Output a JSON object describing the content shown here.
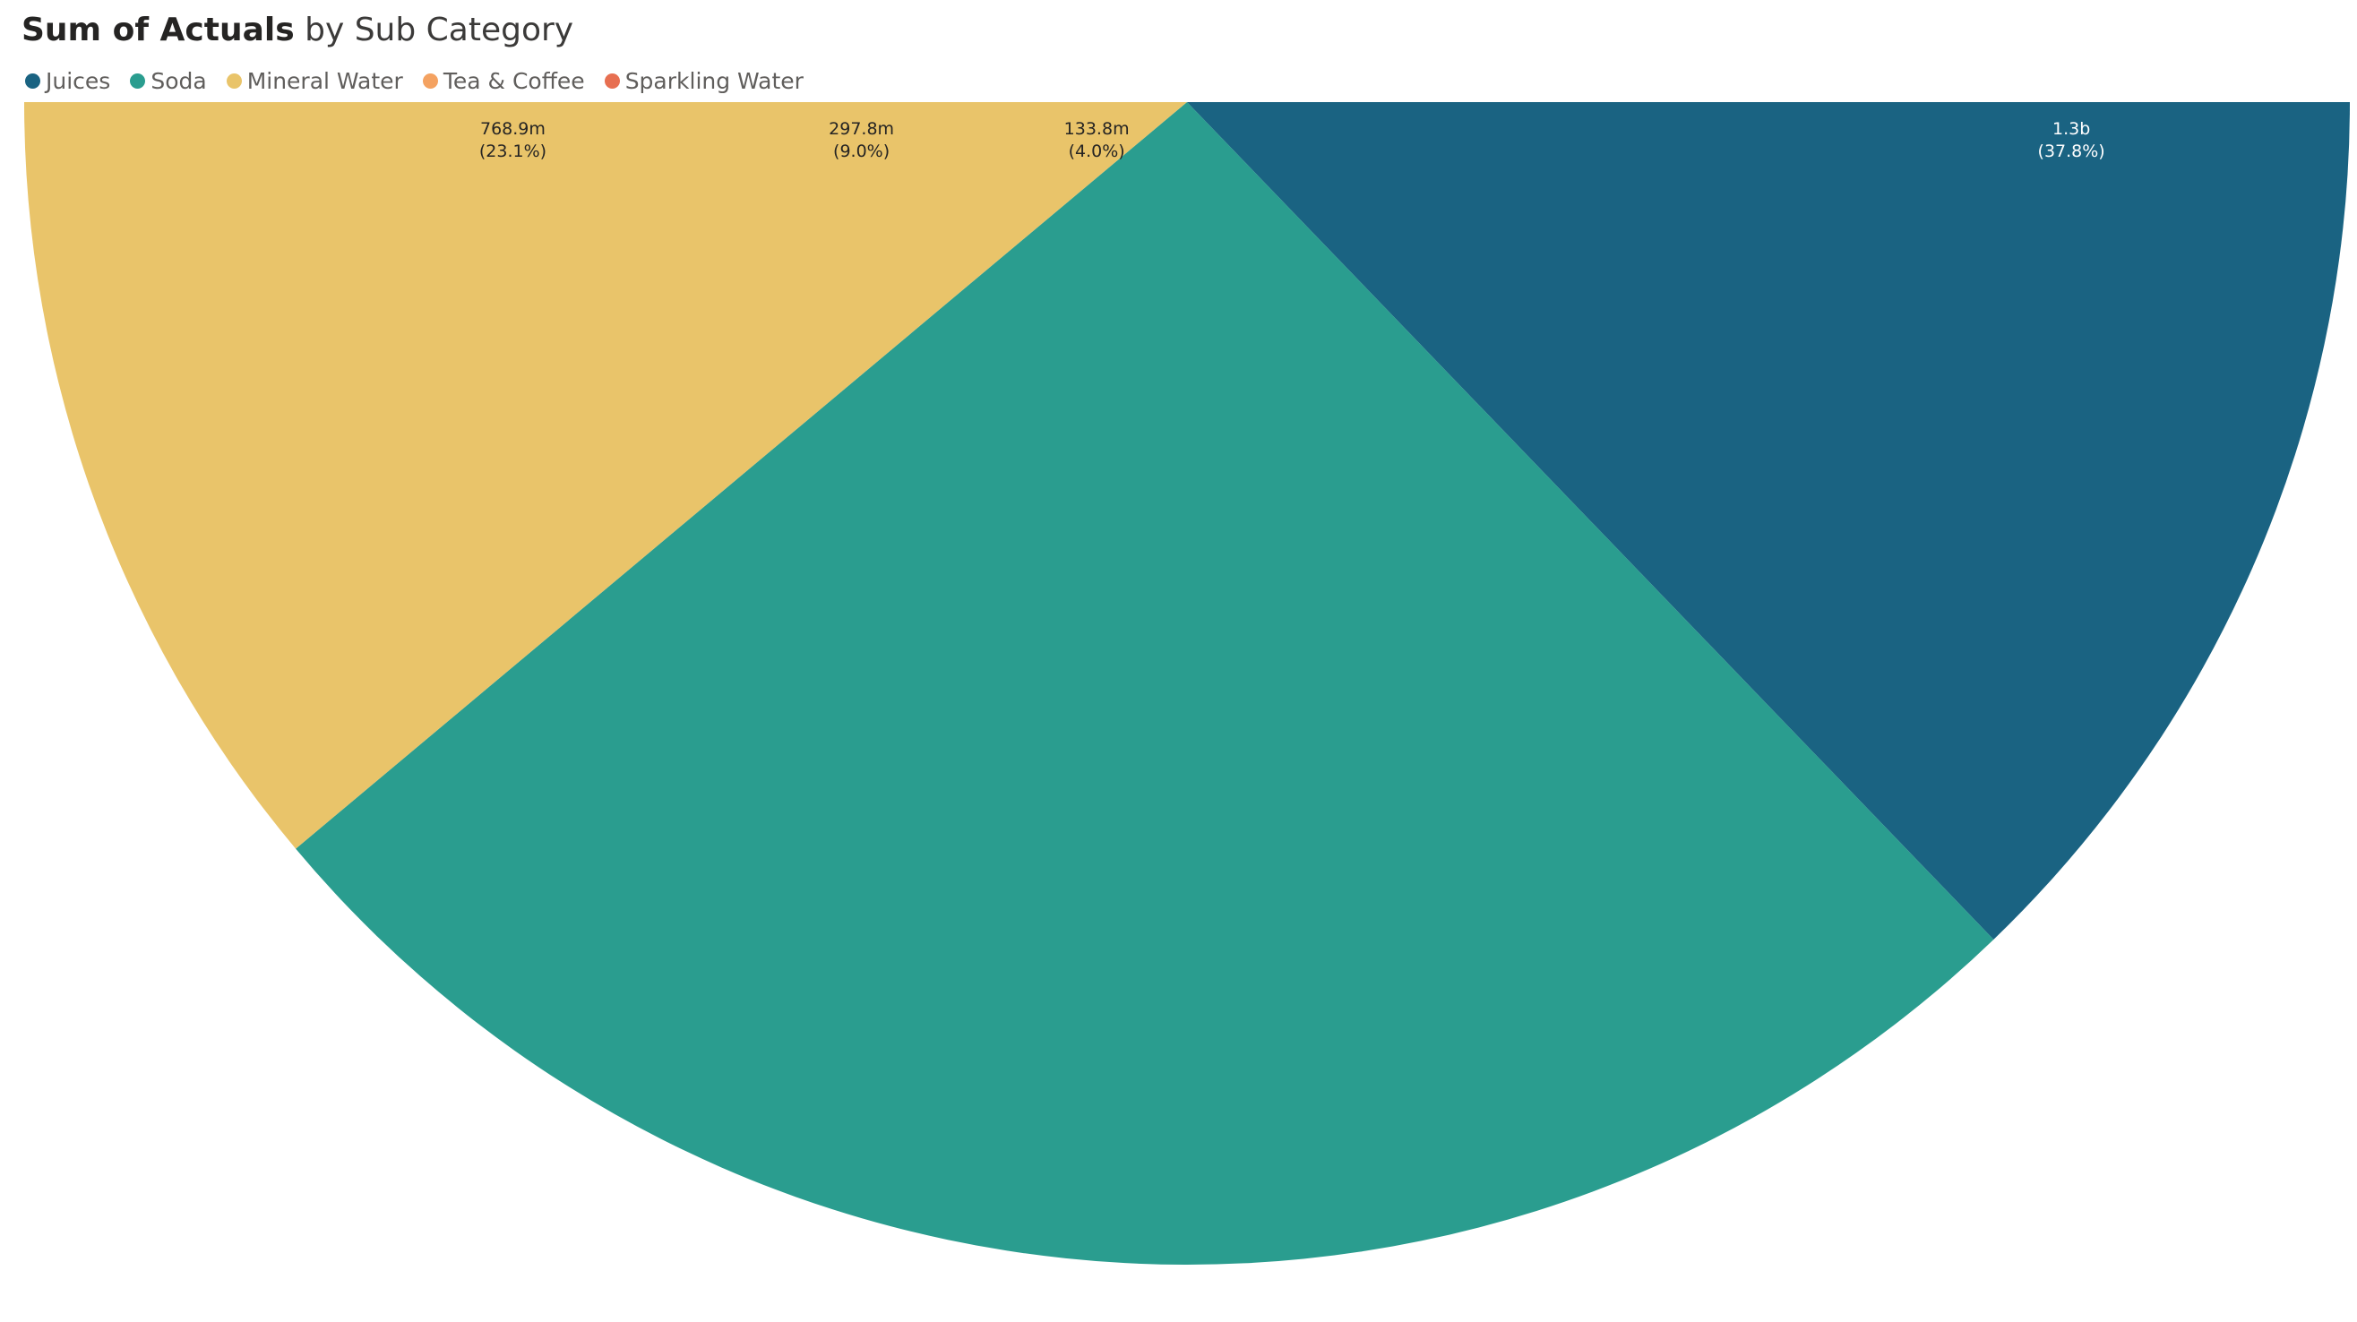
{
  "title": {
    "measure": "Sum of Actuals",
    "rest": "by Sub Category"
  },
  "legend": [
    {
      "label": "Juices",
      "color": "#1a6382"
    },
    {
      "label": "Soda",
      "color": "#2a9d8f"
    },
    {
      "label": "Mineral Water",
      "color": "#e9c46a"
    },
    {
      "label": "Tea & Coffee",
      "color": "#f4a261"
    },
    {
      "label": "Sparkling Water",
      "color": "#e76f51"
    }
  ],
  "chart_data": {
    "type": "pie",
    "title": "Sum of Actuals by Sub Category",
    "legend_position": "top-left",
    "start_angle_deg": 0,
    "slices": [
      {
        "name": "Juices",
        "value_label": "1.3b",
        "percent_label": "(37.8%)",
        "percent": 37.8,
        "color": "#1a6382",
        "label_color": "#ffffff"
      },
      {
        "name": "Soda",
        "value_label": "",
        "percent_label": "",
        "percent": 26.1,
        "color": "#2a9d8f",
        "label_color": "#ffffff"
      },
      {
        "name": "Mineral Water",
        "value_label": "768.9m",
        "percent_label": "(23.1%)",
        "percent": 23.1,
        "color": "#e9c46a",
        "label_color": "#252423"
      },
      {
        "name": "Tea & Coffee",
        "value_label": "297.8m",
        "percent_label": "(9.0%)",
        "percent": 9.0,
        "color": "#f4a261",
        "label_color": "#252423"
      },
      {
        "name": "Sparkling Water",
        "value_label": "133.8m",
        "percent_label": "(4.0%)",
        "percent": 4.0,
        "color": "#e76f51",
        "label_color": "#252423"
      }
    ]
  }
}
